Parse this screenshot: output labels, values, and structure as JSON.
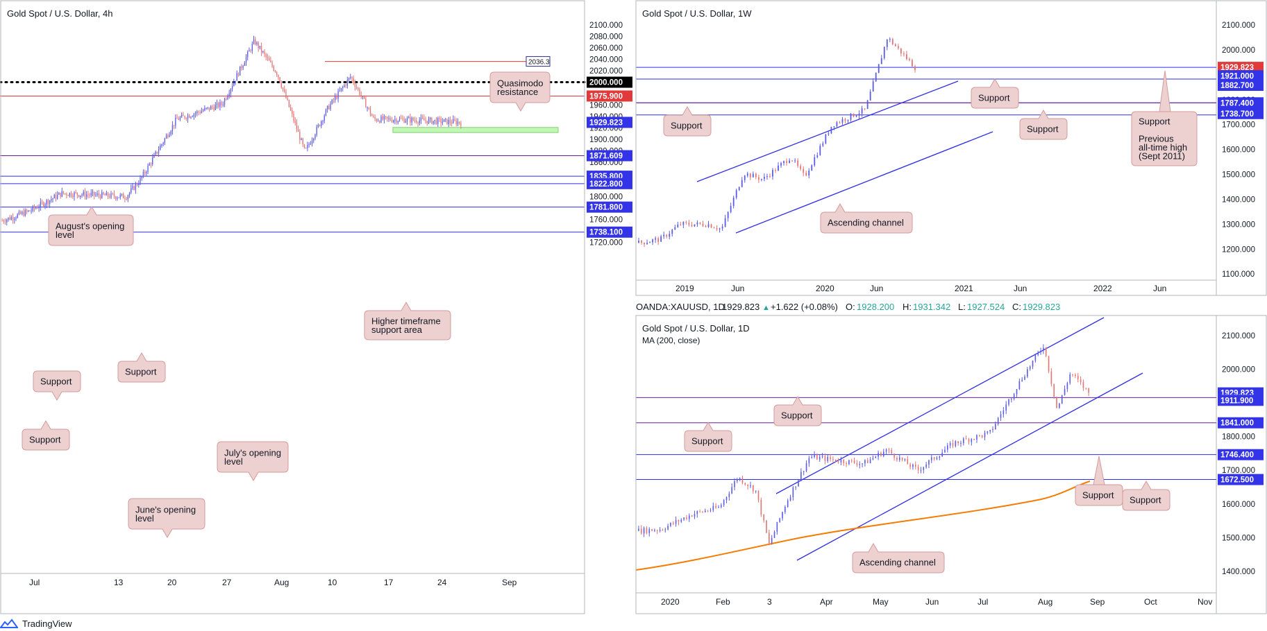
{
  "footer": {
    "brand": "TradingView"
  },
  "colors": {
    "blue_line": "#2E2EE6",
    "red_line": "#E53935",
    "candle_up": "#5B5BE6",
    "candle_down": "#E57373",
    "callout_fill": "#EDD0D0",
    "callout_border": "#D59A9A",
    "green_zone": "#B8F5A8",
    "ma_orange": "#F57C00",
    "red_tag": "#E03A3A",
    "blue_tag": "#3333E8"
  },
  "panel_4h": {
    "title": "Gold Spot / U.S. Dollar, 4h",
    "y_ticks": [
      "2100.000",
      "2080.000",
      "2060.000",
      "2040.000",
      "2020.000",
      "2000.000",
      "1980.000",
      "1960.000",
      "1940.000",
      "1920.000",
      "1900.000",
      "1880.000",
      "1860.000",
      "1840.000",
      "1820.000",
      "1800.000",
      "1780.000",
      "1760.000",
      "1740.000",
      "1720.000"
    ],
    "x_ticks": [
      "Jul",
      "13",
      "20",
      "27",
      "Aug",
      "10",
      "17",
      "24",
      "Sep"
    ],
    "price_tags": [
      "2000.000",
      "1975.900",
      "1929.823",
      "1871.609",
      "1835.800",
      "1822.800",
      "1781.800",
      "1738.100"
    ],
    "small_tag": "2036.3",
    "annotations": {
      "quasimodo": [
        "Quasimodo",
        "resistance"
      ],
      "august_open": [
        "August's opening",
        "level"
      ],
      "support_a": "Support",
      "support_b": "Support",
      "support_c": "Support",
      "htf_support": [
        "Higher timeframe",
        "support area"
      ],
      "july_open": [
        "July's opening",
        "level"
      ],
      "june_open": [
        "June's opening",
        "level"
      ]
    }
  },
  "panel_1w": {
    "title": "Gold Spot / U.S. Dollar, 1W",
    "y_ticks": [
      "2100.000",
      "2000.000",
      "1900.000",
      "1800.000",
      "1700.000",
      "1600.000",
      "1500.000",
      "1400.000",
      "1300.000",
      "1200.000",
      "1100.000"
    ],
    "x_ticks": [
      "2019",
      "Jun",
      "2020",
      "Jun",
      "2021",
      "Jun",
      "2022",
      "Jun"
    ],
    "price_tags": [
      "1929.823",
      "1921.000",
      "1882.700",
      "1787.400",
      "1738.700"
    ],
    "annotations": {
      "support_left": "Support",
      "support_mid": "Support",
      "support_right": "Support",
      "prev_high": [
        "Support",
        "",
        "Previous",
        "all-time high",
        "(Sept 2011)"
      ],
      "channel": "Ascending channel"
    }
  },
  "panel_1d": {
    "title": "Gold Spot / U.S. Dollar, 1D",
    "ma_label": "MA (200, close)",
    "legend": {
      "symbol": "OANDA:XAUUSD, 1D",
      "last": "1929.823",
      "change": "+1.622 (+0.08%)",
      "o_label": "O:",
      "o": "1928.200",
      "h_label": "H:",
      "h": "1931.342",
      "l_label": "L:",
      "l": "1927.524",
      "c_label": "C:",
      "c": "1929.823"
    },
    "y_ticks": [
      "2100.000",
      "2000.000",
      "1900.000",
      "1800.000",
      "1700.000",
      "1600.000",
      "1500.000",
      "1400.000"
    ],
    "x_ticks": [
      "2020",
      "Feb",
      "3",
      "Apr",
      "May",
      "Jun",
      "Jul",
      "Aug",
      "Sep",
      "Oct",
      "Nov"
    ],
    "price_tags": [
      "1929.823",
      "1911.900",
      "1841.000",
      "1746.400",
      "1672.500"
    ],
    "annotations": {
      "support_a": "Support",
      "support_b": "Support",
      "support_c": "Support",
      "support_d": "Support",
      "channel": "Ascending channel"
    }
  },
  "chart_data": [
    {
      "type": "candlestick",
      "title": "Gold Spot / U.S. Dollar, 4h",
      "ylim": [
        1710,
        2110
      ],
      "x_range": [
        "2020-06-25",
        "2020-09-10"
      ],
      "key_points": [
        {
          "date": "Jul 1",
          "price": 1770
        },
        {
          "date": "Jul 8",
          "price": 1812
        },
        {
          "date": "Jul 20",
          "price": 1815
        },
        {
          "date": "Jul 27",
          "price": 1940
        },
        {
          "date": "Aug 3",
          "price": 1975
        },
        {
          "date": "Aug 7",
          "price": 2072
        },
        {
          "date": "Aug 11",
          "price": 1870
        },
        {
          "date": "Aug 14",
          "price": 1945
        },
        {
          "date": "Aug 18",
          "price": 2012
        },
        {
          "date": "Aug 21",
          "price": 1930
        },
        {
          "date": "Aug 26",
          "price": 1929.8
        }
      ],
      "levels": [
        {
          "price": 2036.3,
          "label": "Quasimodo resistance",
          "color": "red"
        },
        {
          "price": 2000.0,
          "style": "dotted",
          "color": "black"
        },
        {
          "price": 1975.9,
          "label": "August's opening level",
          "color": "red"
        },
        {
          "price": 1871.609,
          "color": "purple"
        },
        {
          "price": 1835.8,
          "label": "Support",
          "color": "blue"
        },
        {
          "price": 1822.8,
          "label": "Support",
          "color": "blue"
        },
        {
          "price": 1781.8,
          "label": "July's opening level",
          "color": "blue"
        },
        {
          "price": 1738.1,
          "label": "June's opening level",
          "color": "blue"
        }
      ],
      "zones": [
        {
          "from": 1912,
          "to": 1921,
          "label": "Higher timeframe support area"
        }
      ]
    },
    {
      "type": "candlestick",
      "title": "Gold Spot / U.S. Dollar, 1W",
      "ylim": [
        1100,
        2150
      ],
      "x_range": [
        "2018-10-01",
        "2022-08-01"
      ],
      "key_points": [
        {
          "date": "2018-10",
          "price": 1200
        },
        {
          "date": "2019-06",
          "price": 1300
        },
        {
          "date": "2019-09",
          "price": 1520
        },
        {
          "date": "2019-12",
          "price": 1480
        },
        {
          "date": "2020-03",
          "price": 1560
        },
        {
          "date": "2020-05",
          "price": 1730
        },
        {
          "date": "2020-08",
          "price": 2072
        },
        {
          "date": "2020-08-24",
          "price": 1929.8
        }
      ],
      "levels": [
        {
          "price": 1921.0,
          "label": "Support"
        },
        {
          "price": 1882.7
        },
        {
          "price": 1787.4,
          "label": "Support"
        },
        {
          "price": 1738.7,
          "label": "Support"
        }
      ],
      "channel": "Ascending channel"
    },
    {
      "type": "candlestick",
      "title": "Gold Spot / U.S. Dollar, 1D",
      "ylim": [
        1350,
        2160
      ],
      "x_range": [
        "2019-12-15",
        "2020-11-15"
      ],
      "key_points": [
        {
          "date": "2020-01-01",
          "price": 1520
        },
        {
          "date": "2020-02-24",
          "price": 1680
        },
        {
          "date": "2020-03-19",
          "price": 1470
        },
        {
          "date": "2020-04-14",
          "price": 1740
        },
        {
          "date": "2020-06-01",
          "price": 1730
        },
        {
          "date": "2020-07-01",
          "price": 1780
        },
        {
          "date": "2020-08-07",
          "price": 2072
        },
        {
          "date": "2020-08-12",
          "price": 1870
        },
        {
          "date": "2020-08-26",
          "price": 1929.8
        }
      ],
      "levels": [
        {
          "price": 1911.9,
          "label": "Support"
        },
        {
          "price": 1841.0,
          "label": "Support"
        },
        {
          "price": 1746.4,
          "label": "Support"
        },
        {
          "price": 1672.5,
          "label": "Support"
        }
      ],
      "ma": {
        "name": "MA (200, close)",
        "start": 1415,
        "end": 1678
      },
      "channel": "Ascending channel"
    }
  ]
}
